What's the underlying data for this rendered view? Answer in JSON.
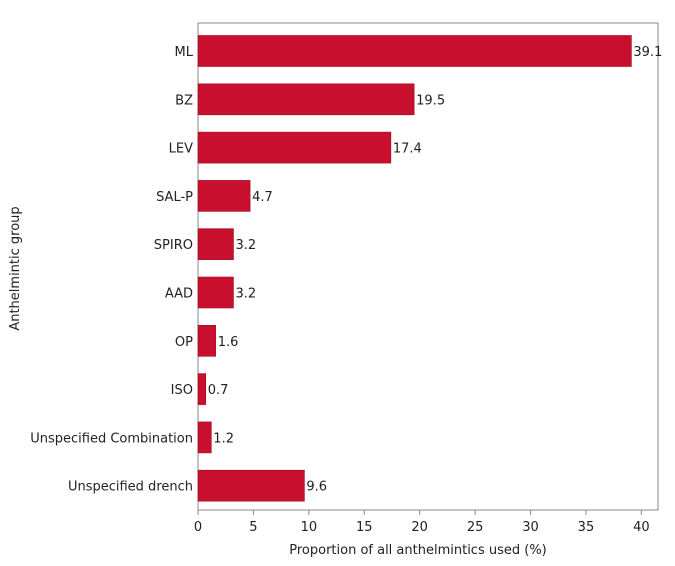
{
  "chart_data": {
    "type": "bar",
    "orientation": "horizontal",
    "categories": [
      "ML",
      "BZ",
      "LEV",
      "SAL-P",
      "SPIRO",
      "AAD",
      "OP",
      "ISO",
      "Unspecified Combination",
      "Unspecified drench"
    ],
    "values": [
      39.1,
      19.5,
      17.4,
      4.7,
      3.2,
      3.2,
      1.6,
      0.7,
      1.2,
      9.6
    ],
    "value_labels": [
      "39.1",
      "19.5",
      "17.4",
      "4.7",
      "3.2",
      "3.2",
      "1.6",
      "0.7",
      "1.2",
      "9.6"
    ],
    "xlabel": "Proportion of all anthelmintics used (%)",
    "ylabel": "Anthelmintic group",
    "xlim": [
      0,
      41.5
    ],
    "xticks": [
      0,
      5,
      10,
      15,
      20,
      25,
      30,
      35,
      40
    ],
    "xtick_labels": [
      "0",
      "5",
      "10",
      "15",
      "20",
      "25",
      "30",
      "35",
      "40"
    ],
    "grid": false,
    "legend": "none",
    "bar_color": "#c8102e"
  }
}
